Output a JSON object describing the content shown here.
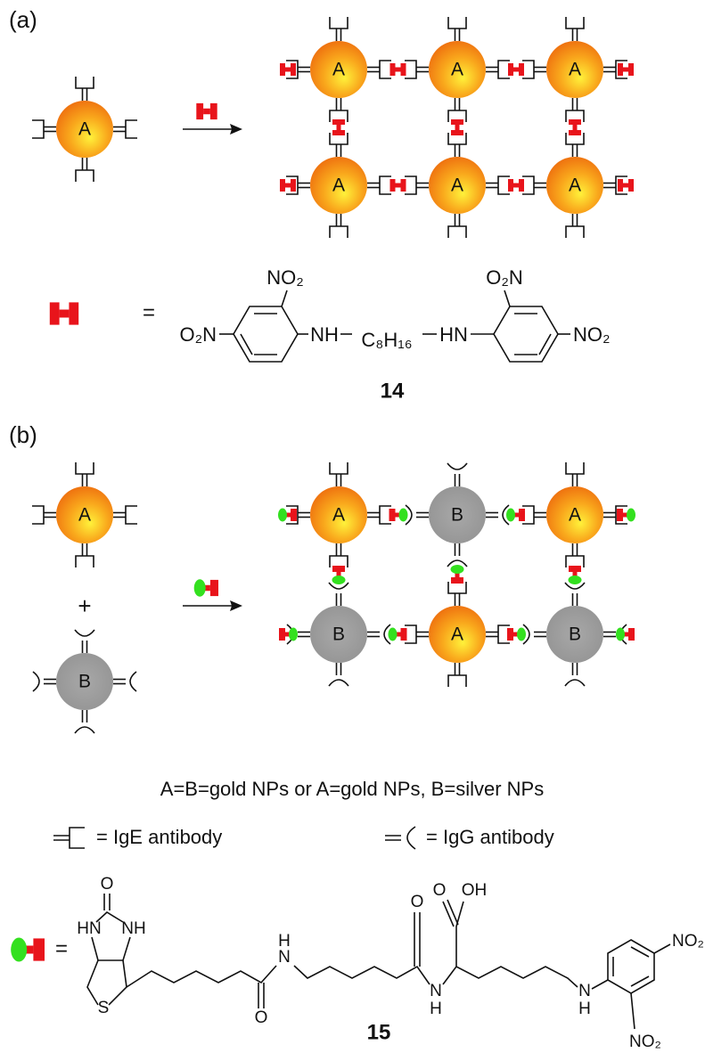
{
  "panel_a": {
    "label": "(a)",
    "reactant": "A",
    "grid": [
      [
        "A",
        "A",
        "A"
      ],
      [
        "A",
        "A",
        "A"
      ]
    ],
    "linker_equals": "=",
    "compound_14": {
      "groups": [
        "NO₂",
        "O₂N",
        "NH",
        "C₈H₁₆",
        "HN",
        "O₂N",
        "NO₂"
      ],
      "number": "14"
    }
  },
  "panel_b": {
    "label": "(b)",
    "reactants": [
      "A",
      "B"
    ],
    "plus": "+",
    "grid": [
      [
        "A",
        "B",
        "A"
      ],
      [
        "B",
        "A",
        "B"
      ]
    ]
  },
  "legend": {
    "composition": "A=B=gold NPs or A=gold NPs, B=silver NPs",
    "ige": "= IgE antibody",
    "igg": "= IgG antibody"
  },
  "compound_15": {
    "equals": "=",
    "atoms": [
      "O",
      "HN",
      "NH",
      "S",
      "H",
      "N",
      "O",
      "O",
      "O",
      "OH",
      "N",
      "H",
      "N",
      "H",
      "NO₂",
      "NO₂"
    ],
    "number": "15"
  }
}
